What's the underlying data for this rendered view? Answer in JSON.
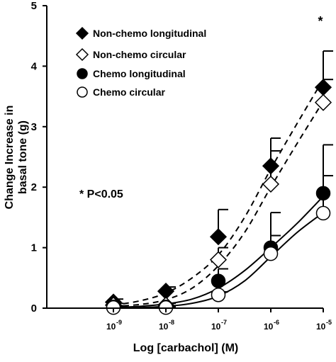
{
  "chart_data": {
    "type": "scatter",
    "xlabel": "Log [carbachol] (M)",
    "ylabel_line1": "Change Increase in",
    "ylabel_line2": "basal tone (g)",
    "x_tick_base": "10",
    "x_ticks": [
      {
        "exp": -9,
        "exp_label": "-9"
      },
      {
        "exp": -8,
        "exp_label": "-8"
      },
      {
        "exp": -7,
        "exp_label": "-7"
      },
      {
        "exp": -6,
        "exp_label": "-6"
      },
      {
        "exp": -5,
        "exp_label": "-5"
      }
    ],
    "y_ticks": [
      "0",
      "1",
      "2",
      "3",
      "4",
      "5"
    ],
    "xlim_exp": [
      -9.7,
      -5
    ],
    "ylim": [
      0,
      5
    ],
    "x_log_scale": true,
    "grid": false,
    "legend_position": "top-left",
    "annotation_sig": "* P<0.05",
    "annotation_star": "*",
    "series": [
      {
        "name": "Non-chemo longitudinal",
        "marker": "diamond",
        "fill": "#000000",
        "x_exp": [
          -9,
          -8,
          -7,
          -6,
          -5
        ],
        "y": [
          0.1,
          0.28,
          1.18,
          2.35,
          3.65
        ],
        "err": [
          0.05,
          0.07,
          0.45,
          0.46,
          0.6
        ],
        "fit_line": "dashed",
        "fit": [
          [
            -9,
            0.05
          ],
          [
            -8.5,
            0.12
          ],
          [
            -8,
            0.25
          ],
          [
            -7.5,
            0.5
          ],
          [
            -7,
            0.88
          ],
          [
            -6.5,
            1.5
          ],
          [
            -6,
            2.3
          ],
          [
            -5.5,
            3.05
          ],
          [
            -5,
            3.78
          ]
        ]
      },
      {
        "name": "Non-chemo circular",
        "marker": "diamond",
        "fill": "#ffffff",
        "x_exp": [
          -9,
          -8,
          -7,
          -6,
          -5
        ],
        "y": [
          0.05,
          0.05,
          0.8,
          2.05,
          3.4
        ],
        "err": [
          0.03,
          0.03,
          0.2,
          0.55,
          0.38
        ],
        "fit_line": "dashed",
        "fit": [
          [
            -9,
            0.03
          ],
          [
            -8.5,
            0.06
          ],
          [
            -8,
            0.14
          ],
          [
            -7.5,
            0.33
          ],
          [
            -7,
            0.7
          ],
          [
            -6.5,
            1.25
          ],
          [
            -6,
            2.0
          ],
          [
            -5.5,
            2.72
          ],
          [
            -5,
            3.42
          ]
        ]
      },
      {
        "name": "Chemo longitudinal",
        "marker": "circle",
        "fill": "#000000",
        "x_exp": [
          -9,
          -8,
          -7,
          -6,
          -5
        ],
        "y": [
          0.02,
          0.02,
          0.45,
          1.0,
          1.9
        ],
        "err": [
          0.02,
          0.02,
          0.2,
          0.58,
          0.8
        ],
        "fit_line": "solid",
        "fit": [
          [
            -9,
            0.01
          ],
          [
            -8.5,
            0.03
          ],
          [
            -8,
            0.07
          ],
          [
            -7.5,
            0.15
          ],
          [
            -7,
            0.33
          ],
          [
            -6.5,
            0.62
          ],
          [
            -6,
            1.0
          ],
          [
            -5.5,
            1.4
          ],
          [
            -5,
            1.85
          ]
        ]
      },
      {
        "name": "Chemo circular",
        "marker": "circle",
        "fill": "#ffffff",
        "x_exp": [
          -9,
          -8,
          -7,
          -6,
          -5
        ],
        "y": [
          0.01,
          0.01,
          0.22,
          0.9,
          1.57
        ],
        "err": [
          0.01,
          0.01,
          0.05,
          0.3,
          0.62
        ],
        "fit_line": "solid",
        "fit": [
          [
            -9,
            0.0
          ],
          [
            -8.5,
            0.01
          ],
          [
            -8,
            0.03
          ],
          [
            -7.5,
            0.08
          ],
          [
            -7,
            0.2
          ],
          [
            -6.5,
            0.45
          ],
          [
            -6,
            0.85
          ],
          [
            -5.5,
            1.25
          ],
          [
            -5,
            1.58
          ]
        ]
      }
    ]
  }
}
